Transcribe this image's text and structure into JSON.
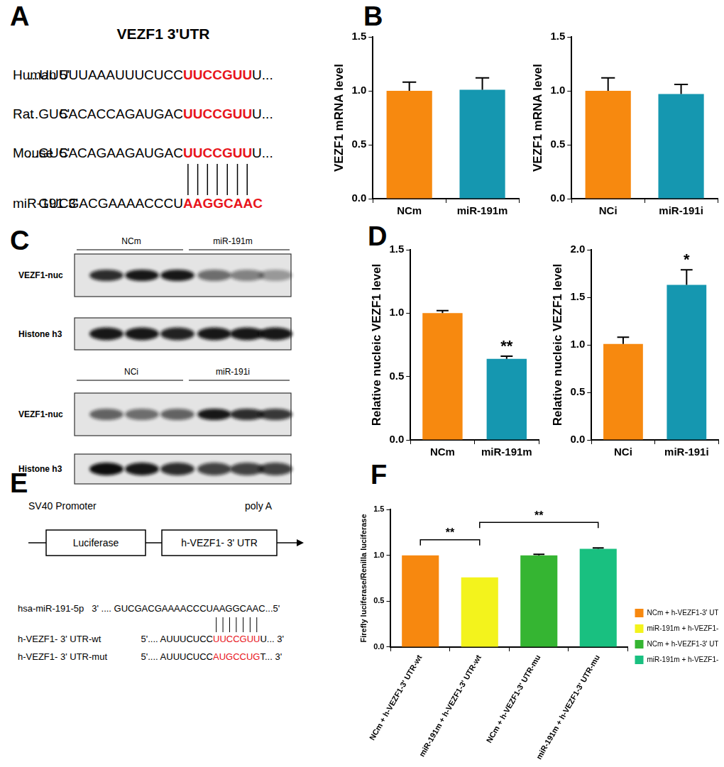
{
  "panel_labels": [
    "A",
    "B",
    "C",
    "D",
    "E",
    "F"
  ],
  "panel_a": {
    "title": "VEZF1  3'UTR",
    "rows": [
      {
        "species": "Human",
        "prefix": "5'",
        "seq": "...UUUUUAAAUUUCUCC",
        "site": "UUCCGUU",
        "suffix": "U..."
      },
      {
        "species": "Rat",
        "prefix": "5'",
        "seq": "...GUCACACCAGAUGAC",
        "site": "UUCCGUU",
        "suffix": "U..."
      },
      {
        "species": "Mouse",
        "prefix": "5'",
        "seq": "...GUCACAGAAGAUGAC",
        "site": "UUCCGUU",
        "suffix": "U..."
      }
    ],
    "mirna": {
      "species": "miR-191",
      "prefix": "3'",
      "seq": "GUCGACGAAAACCCU",
      "site": "AAGGCAAC"
    }
  },
  "panel_c": {
    "blots": [
      {
        "groups": [
          "NCm",
          "miR-191m"
        ],
        "rows": [
          "VEZF1-nuc",
          "Histone h3"
        ]
      },
      {
        "groups": [
          "NCi",
          "miR-191i"
        ],
        "rows": [
          "VEZF1-nuc",
          "Histone h3"
        ]
      }
    ]
  },
  "panel_e": {
    "promoter": "SV40 Promoter",
    "poly_a": "poly A",
    "boxes": [
      "Luciferase",
      "h-VEZF1- 3' UTR"
    ],
    "mirna": {
      "label": "hsa-miR-191-5p",
      "before": "3' .... GUCGACGAAAACCCU",
      "site": "AAGGCAA",
      "after": "C...5'"
    },
    "rows": [
      {
        "label": "h-VEZF1- 3' UTR-wt",
        "before": "5'.... AUUUCUCC",
        "site": "UUCCGUU",
        "after": "U... 3'"
      },
      {
        "label": "h-VEZF1- 3' UTR-mut",
        "before": "5'.... AUUUCUCC",
        "site": "AUGCCUG",
        "after": "T... 3'"
      }
    ]
  },
  "chart_data": [
    {
      "type": "bar",
      "y_label": "VEZF1 mRNA level",
      "categories": [
        "NCm",
        "miR-191m"
      ],
      "values": [
        1.0,
        1.01
      ],
      "errors": [
        0.08,
        0.11
      ],
      "colors": [
        "#f7890f",
        "#1597b0"
      ],
      "ylim": [
        0,
        1.5
      ],
      "yticks": [
        {
          "value": 0,
          "label": "0.0"
        },
        0.5,
        {
          "value": 1,
          "label": "1.0"
        },
        1.5
      ],
      "grid": false
    },
    {
      "type": "bar",
      "y_label": "VEZF1 mRNA level",
      "categories": [
        "NCi",
        "miR-191i"
      ],
      "values": [
        1.0,
        0.97
      ],
      "errors": [
        0.12,
        0.09
      ],
      "colors": [
        "#f7890f",
        "#1597b0"
      ],
      "ylim": [
        0,
        1.5
      ],
      "yticks": [
        {
          "value": 0,
          "label": "0.0"
        },
        0.5,
        {
          "value": 1,
          "label": "1.0"
        },
        1.5
      ],
      "grid": false
    },
    {
      "type": "bar",
      "y_label": "Relative nucleic VEZF1 level",
      "categories": [
        "NCm",
        "miR-191m"
      ],
      "values": [
        1.0,
        0.64
      ],
      "errors": [
        0.02,
        0.02
      ],
      "colors": [
        "#f7890f",
        "#1597b0"
      ],
      "ylim": [
        0,
        1.5
      ],
      "yticks": [
        {
          "value": 0,
          "label": "0.0"
        },
        0.5,
        {
          "value": 1,
          "label": "1.0"
        },
        1.5
      ],
      "grid": false,
      "annotations": [
        {
          "text": "**",
          "category": "miR-191m"
        }
      ]
    },
    {
      "type": "bar",
      "y_label": "Relative nucleic VEZF1 level",
      "categories": [
        "NCi",
        "miR-191i"
      ],
      "values": [
        1.01,
        1.63
      ],
      "errors": [
        0.07,
        0.16
      ],
      "colors": [
        "#f7890f",
        "#1597b0"
      ],
      "ylim": [
        0,
        2
      ],
      "yticks": [
        {
          "value": 0,
          "label": "0.0"
        },
        0.5,
        {
          "value": 1,
          "label": "1.0"
        },
        1.5,
        {
          "value": 2,
          "label": "2.0"
        }
      ],
      "grid": false,
      "annotations": [
        {
          "text": "*",
          "category": "miR-191i"
        }
      ]
    },
    {
      "type": "bar",
      "y_label": "Firefly luciferase/Renilla luciferase",
      "categories": [
        "NCm + h-VEZF1-3' UTR-wt",
        "miR-191m + h-VEZF1-3' UTR-wt",
        "NCm + h-VEZF1-3' UTR-mu",
        "miR-191m + h-VEZF1-3' UTR-mu"
      ],
      "values": [
        1.0,
        0.76,
        1.0,
        1.07
      ],
      "errors": [
        0.0,
        0.0,
        0.01,
        0.01
      ],
      "colors": [
        "#f7880f",
        "#f3f31c",
        "#35b532",
        "#19c080"
      ],
      "ylim": [
        0,
        1.5
      ],
      "yticks": [
        {
          "value": 0,
          "label": "0.0"
        },
        0.5,
        {
          "value": 1,
          "label": "1.0"
        },
        1.5
      ],
      "grid": false,
      "legend": "right",
      "annotations": [
        {
          "text": "**",
          "between": [
            "NCm + h-VEZF1-3' UTR-wt",
            "miR-191m + h-VEZF1-3' UTR-wt"
          ]
        },
        {
          "text": "**",
          "between": [
            "miR-191m + h-VEZF1-3' UTR-wt",
            "miR-191m + h-VEZF1-3' UTR-mu"
          ]
        }
      ]
    }
  ]
}
